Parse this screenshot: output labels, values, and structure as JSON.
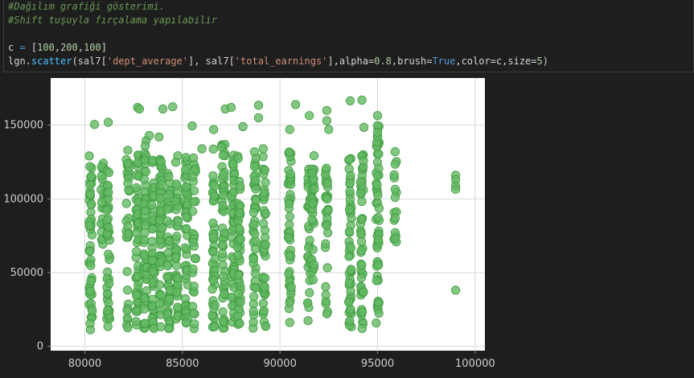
{
  "code": {
    "comment1": "#Dağılım grafiği gösterimi.",
    "comment2": "#Shift tuşuyla fırçalama yapılabilir",
    "line_c": {
      "var": "c",
      "op": " = ",
      "open": "[",
      "n1": "100",
      "n2": "200",
      "n3": "100",
      "close": "]"
    },
    "line_call": {
      "p1": "lgn.",
      "fn": "scatter",
      "p2": "(sal7[",
      "s1": "'dept_average'",
      "p3": "], sal7[",
      "s2": "'total_earnings'",
      "p4": "],alpha=",
      "alpha": "0.8",
      "p5": ",brush=",
      "brush": "True",
      "p6": ",color=c,size=",
      "size": "5",
      "p7": ")"
    }
  },
  "chart_data": {
    "type": "scatter",
    "title": "",
    "xlabel": "",
    "ylabel": "",
    "x_ticks": [
      "80000",
      "85000",
      "90000",
      "95000",
      "100000"
    ],
    "y_ticks": [
      "0",
      "50000",
      "100000",
      "150000"
    ],
    "xlim": [
      78250,
      100500
    ],
    "ylim": [
      -3000,
      182000
    ],
    "grid": true,
    "point_color": "#64b964",
    "point_edge": "#3d9a3d",
    "alpha": 0.8,
    "columns": [
      {
        "x": 80300,
        "ymin": 11000,
        "ymax": 130000,
        "n": 55
      },
      {
        "x": 80900,
        "ymin": 60000,
        "ymax": 128000,
        "n": 20
      },
      {
        "x": 81200,
        "ymin": 12000,
        "ymax": 120000,
        "n": 45
      },
      {
        "x": 82200,
        "ymin": 13000,
        "ymax": 132000,
        "n": 30
      },
      {
        "x": 82700,
        "ymin": 12000,
        "ymax": 130000,
        "n": 55
      },
      {
        "x": 83100,
        "ymin": 12000,
        "ymax": 140000,
        "n": 55
      },
      {
        "x": 83500,
        "ymin": 12000,
        "ymax": 134000,
        "n": 50
      },
      {
        "x": 83900,
        "ymin": 12000,
        "ymax": 132000,
        "n": 55
      },
      {
        "x": 84300,
        "ymin": 12000,
        "ymax": 128000,
        "n": 45
      },
      {
        "x": 84700,
        "ymin": 12000,
        "ymax": 130000,
        "n": 40
      },
      {
        "x": 85200,
        "ymin": 12000,
        "ymax": 130000,
        "n": 55
      },
      {
        "x": 85600,
        "ymin": 12000,
        "ymax": 128000,
        "n": 30
      },
      {
        "x": 86600,
        "ymin": 13000,
        "ymax": 134000,
        "n": 45
      },
      {
        "x": 87100,
        "ymin": 12000,
        "ymax": 140000,
        "n": 50
      },
      {
        "x": 87600,
        "ymin": 12000,
        "ymax": 132000,
        "n": 55
      },
      {
        "x": 87900,
        "ymin": 12000,
        "ymax": 130000,
        "n": 50
      },
      {
        "x": 88700,
        "ymin": 12000,
        "ymax": 132000,
        "n": 45
      },
      {
        "x": 89200,
        "ymin": 12000,
        "ymax": 134000,
        "n": 45
      },
      {
        "x": 90500,
        "ymin": 12000,
        "ymax": 132000,
        "n": 50
      },
      {
        "x": 91500,
        "ymin": 15000,
        "ymax": 128000,
        "n": 35
      },
      {
        "x": 91700,
        "ymin": 45000,
        "ymax": 134000,
        "n": 30
      },
      {
        "x": 92400,
        "ymin": 22000,
        "ymax": 130000,
        "n": 30
      },
      {
        "x": 93600,
        "ymin": 12000,
        "ymax": 128000,
        "n": 50
      },
      {
        "x": 94200,
        "ymin": 12000,
        "ymax": 130000,
        "n": 50
      },
      {
        "x": 95000,
        "ymin": 12000,
        "ymax": 150000,
        "n": 55
      },
      {
        "x": 95900,
        "ymin": 70000,
        "ymax": 132000,
        "n": 10
      }
    ],
    "points": [
      [
        80500,
        150500
      ],
      [
        81200,
        152000
      ],
      [
        82200,
        133000
      ],
      [
        82700,
        162000
      ],
      [
        82800,
        161000
      ],
      [
        83300,
        143000
      ],
      [
        83800,
        142000
      ],
      [
        84000,
        161000
      ],
      [
        84500,
        162500
      ],
      [
        85500,
        149500
      ],
      [
        86000,
        134000
      ],
      [
        86600,
        147000
      ],
      [
        87000,
        135000
      ],
      [
        87200,
        161000
      ],
      [
        87500,
        162000
      ],
      [
        88100,
        149000
      ],
      [
        88900,
        163500
      ],
      [
        88900,
        155000
      ],
      [
        90500,
        147000
      ],
      [
        90800,
        164000
      ],
      [
        91500,
        156500
      ],
      [
        92400,
        160000
      ],
      [
        92400,
        153000
      ],
      [
        92500,
        147000
      ],
      [
        93600,
        166500
      ],
      [
        94200,
        167000
      ],
      [
        94300,
        148500
      ],
      [
        95000,
        156500
      ],
      [
        95000,
        145000
      ],
      [
        95900,
        132000
      ],
      [
        95900,
        123500
      ],
      [
        95900,
        106500
      ],
      [
        95900,
        101000
      ],
      [
        95900,
        87000
      ],
      [
        95900,
        77000
      ],
      [
        95900,
        73000
      ],
      [
        99000,
        116000
      ],
      [
        99000,
        113000
      ],
      [
        99000,
        109000
      ],
      [
        99000,
        106500
      ],
      [
        99000,
        38000
      ],
      [
        82200,
        12500
      ],
      [
        84300,
        12000
      ],
      [
        91700,
        45000
      ],
      [
        92400,
        22000
      ]
    ]
  }
}
